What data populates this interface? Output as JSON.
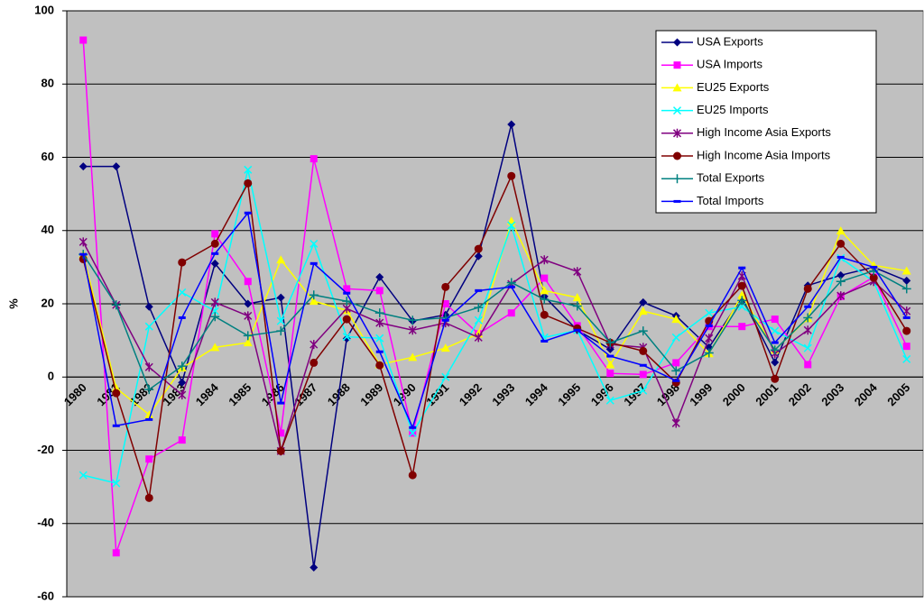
{
  "chart_data": {
    "type": "line",
    "y_label": "%",
    "categories": [
      "1980",
      "1981",
      "1982",
      "1983",
      "1984",
      "1985",
      "1986",
      "1987",
      "1988",
      "1989",
      "1990",
      "1991",
      "1992",
      "1993",
      "1994",
      "1995",
      "1996",
      "1997",
      "1998",
      "1999",
      "2000",
      "2001",
      "2002",
      "2003",
      "2004",
      "2005"
    ],
    "ylim": [
      -60,
      100
    ],
    "yticks": [
      -60,
      -40,
      -20,
      0,
      20,
      40,
      60,
      80,
      100
    ],
    "grid": true,
    "legend": "top-right",
    "series": [
      {
        "name": "USA Exports",
        "color": "#000080",
        "marker": "diamond",
        "values": [
          57.5,
          57.5,
          19.2,
          -1.5,
          31,
          20,
          21.7,
          -52,
          10.5,
          27.3,
          15.3,
          17,
          33,
          69,
          22,
          12.8,
          7.6,
          20.4,
          16.7,
          8.1,
          21.7,
          4,
          25,
          27.8,
          30,
          26.3
        ]
      },
      {
        "name": "USA Imports",
        "color": "#ff00ff",
        "marker": "square",
        "values": [
          92,
          -48,
          -22.4,
          -17.2,
          39.1,
          26.1,
          -15.3,
          59.6,
          24.1,
          23.6,
          -15.3,
          20,
          11.8,
          17.5,
          27,
          14,
          1,
          0.7,
          3.9,
          13.8,
          13.8,
          15.8,
          3.4,
          22,
          27.3,
          8.4
        ]
      },
      {
        "name": "EU25 Exports",
        "color": "#ffff00",
        "marker": "triangle",
        "values": [
          33.5,
          -3,
          -10.3,
          2.5,
          8.1,
          9.4,
          32,
          20.7,
          18.2,
          3.4,
          5.4,
          7.9,
          11.8,
          42.6,
          23.6,
          21.7,
          3.4,
          18,
          15.8,
          6.4,
          22.4,
          7.4,
          16,
          39.9,
          30.5,
          29
        ]
      },
      {
        "name": "EU25 Imports",
        "color": "#00ffff",
        "marker": "x",
        "values": [
          -26.8,
          -29,
          13.8,
          23.1,
          18,
          56.6,
          15.3,
          36.4,
          11,
          10.6,
          -15.3,
          0,
          15.5,
          41.4,
          10.8,
          12.8,
          -6.4,
          -3.7,
          10.8,
          17.5,
          19.2,
          12.6,
          7.9,
          32.5,
          26.1,
          4.9
        ]
      },
      {
        "name": "High Income Asia Exports",
        "color": "#800080",
        "marker": "star",
        "values": [
          36.9,
          19.7,
          2.7,
          -4.9,
          20.4,
          16.7,
          -20.2,
          8.9,
          18.7,
          14.8,
          12.8,
          14.8,
          10.8,
          25.4,
          32,
          28.8,
          8.9,
          8.1,
          -12.6,
          10.6,
          27.6,
          6.4,
          12.8,
          22.2,
          26.1,
          18
        ]
      },
      {
        "name": "High Income Asia Imports",
        "color": "#800000",
        "marker": "circle",
        "values": [
          32.2,
          -4.4,
          -33,
          31.3,
          36.4,
          52.9,
          -20.2,
          3.9,
          15.8,
          3.2,
          -26.8,
          24.6,
          35,
          54.9,
          17,
          13.3,
          9.4,
          7.1,
          -1.5,
          15.3,
          24.9,
          -0.5,
          24.1,
          36.4,
          27.1,
          12.6
        ]
      },
      {
        "name": "Total Exports",
        "color": "#008080",
        "marker": "plus",
        "values": [
          33.5,
          19.7,
          -3.4,
          3,
          16.5,
          11.3,
          12.6,
          22.4,
          20.7,
          17.5,
          15.5,
          16.2,
          19,
          25.8,
          21.2,
          19.4,
          9.4,
          12.6,
          1.7,
          6.6,
          20.9,
          7.4,
          16.2,
          26.1,
          29,
          24.1
        ]
      },
      {
        "name": "Total Imports",
        "color": "#0000ff",
        "marker": "dash",
        "values": [
          33.5,
          -13.3,
          -11.6,
          16.2,
          33.7,
          44.8,
          -7.1,
          31,
          22.9,
          6.9,
          -13.8,
          15.5,
          23.6,
          24.6,
          9.8,
          12.8,
          5.7,
          3.2,
          -1,
          14,
          29.8,
          9.4,
          19.2,
          32.7,
          30,
          16.2
        ]
      }
    ]
  }
}
